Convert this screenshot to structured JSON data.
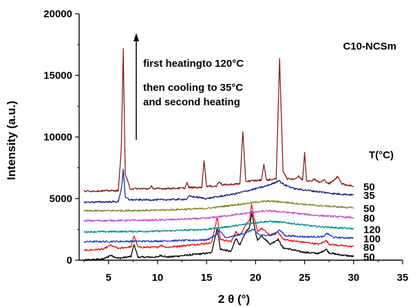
{
  "chart_data": {
    "type": "line",
    "xlabel": "2 θ (°)",
    "ylabel": "Intensity (a.u.)",
    "xlim": [
      2,
      35
    ],
    "ylim": [
      0,
      20000
    ],
    "x_ticks": [
      5,
      10,
      15,
      20,
      25,
      30,
      35
    ],
    "y_ticks": [
      0,
      5000,
      10000,
      15000,
      20000
    ],
    "grid": false,
    "sample_label": "C10-NCSm",
    "annotations": [
      "first heatingto 120°C",
      "then cooling to 35°C",
      "and second heating"
    ],
    "temperature_header": "T(°C)",
    "series": [
      {
        "label": "50",
        "color": "#000000",
        "baseline": 0,
        "x": [
          2.5,
          4.5,
          5.2,
          6,
          7.3,
          7.6,
          8,
          10,
          10.3,
          11,
          15.5,
          15.9,
          16.1,
          16.4,
          17.5,
          18,
          18.4,
          19,
          19.4,
          19.6,
          19.8,
          20.2,
          20.6,
          21.5,
          22.3,
          22.8,
          23.5,
          24.5,
          25.5,
          26.5,
          27.2,
          27.5,
          28.5,
          30
        ],
        "y": [
          0,
          100,
          400,
          150,
          300,
          1300,
          250,
          250,
          400,
          250,
          600,
          2000,
          2600,
          900,
          700,
          1800,
          1200,
          2300,
          2700,
          3900,
          3000,
          1600,
          2000,
          1300,
          1700,
          1000,
          900,
          700,
          600,
          550,
          900,
          600,
          450,
          300
        ]
      },
      {
        "label": "80",
        "color": "#e8161e",
        "baseline": 800,
        "x": [
          2.5,
          4.5,
          5.2,
          6,
          7.3,
          7.6,
          8,
          10,
          10.3,
          11,
          15.5,
          15.9,
          16.1,
          16.4,
          17.5,
          18,
          18.4,
          19,
          19.4,
          19.6,
          19.8,
          20.2,
          20.6,
          21.5,
          22.3,
          22.8,
          23.5,
          24.5,
          25.5,
          26.5,
          27.2,
          27.5,
          28.5,
          30
        ],
        "y": [
          800,
          900,
          1200,
          950,
          1100,
          2000,
          1050,
          1050,
          1200,
          1050,
          1400,
          2800,
          3500,
          1700,
          1500,
          2300,
          2000,
          2900,
          3300,
          4600,
          3600,
          2300,
          2600,
          2000,
          2300,
          1700,
          1600,
          1500,
          1400,
          1300,
          1600,
          1300,
          1200,
          1100
        ]
      },
      {
        "label": "100",
        "color": "#2441c2",
        "baseline": 1600,
        "x": [
          2.5,
          10,
          15,
          15.9,
          16.3,
          17,
          19,
          19.7,
          20.5,
          22,
          22.4,
          23,
          25,
          27,
          27.2,
          28,
          30
        ],
        "y": [
          1500,
          1550,
          1650,
          2000,
          2400,
          1800,
          2200,
          2500,
          2000,
          2100,
          2500,
          2000,
          1900,
          1900,
          2200,
          1850,
          1800
        ]
      },
      {
        "label": "120",
        "color": "#00928e",
        "baseline": 2400,
        "x": [
          2.5,
          10,
          15,
          18,
          20.5,
          21.5,
          23,
          26,
          30
        ],
        "y": [
          2300,
          2350,
          2500,
          2800,
          3100,
          3150,
          3050,
          2750,
          2550
        ]
      },
      {
        "label": "80",
        "color": "#c84fc8",
        "baseline": 3200,
        "x": [
          2.5,
          10,
          15,
          18,
          20.5,
          21.5,
          23,
          26,
          30
        ],
        "y": [
          3200,
          3250,
          3400,
          3700,
          3950,
          4000,
          3900,
          3650,
          3450
        ]
      },
      {
        "label": "50",
        "color": "#86862a",
        "baseline": 4000,
        "x": [
          2.5,
          10,
          15,
          18,
          20.5,
          21.5,
          23,
          26,
          30
        ],
        "y": [
          4000,
          4050,
          4200,
          4500,
          4750,
          4800,
          4700,
          4450,
          4250
        ]
      },
      {
        "label": "35",
        "color": "#1a2a8a",
        "baseline": 4800,
        "x": [
          2.5,
          6,
          6.35,
          6.5,
          6.7,
          7.2,
          10,
          13,
          13.2,
          15,
          18,
          19,
          20,
          21,
          22,
          22.4,
          22.6,
          23,
          24,
          26,
          28,
          30
        ],
        "y": [
          4700,
          4750,
          6000,
          7400,
          5100,
          4900,
          4900,
          4950,
          5200,
          5000,
          5400,
          5600,
          5800,
          6000,
          6300,
          6500,
          6300,
          6100,
          5800,
          5600,
          5400,
          5300
        ]
      },
      {
        "label": "50",
        "color": "#8b1a1a",
        "baseline": 5600,
        "x": [
          2.5,
          6,
          6.3,
          6.5,
          6.7,
          7.2,
          9.2,
          9.4,
          9.6,
          12.8,
          13,
          13.2,
          14.5,
          14.75,
          15,
          16,
          16.3,
          16.6,
          18.4,
          18.7,
          19,
          20.6,
          20.85,
          21.1,
          22.1,
          22.45,
          22.8,
          23,
          23.2,
          24,
          24.4,
          24.8,
          25,
          25.2,
          25.6,
          26,
          26.5,
          27,
          27.5,
          28,
          28.4,
          28.8,
          29.4,
          30
        ],
        "y": [
          5600,
          5650,
          9000,
          17100,
          7000,
          5800,
          5800,
          6000,
          5800,
          5850,
          6300,
          5900,
          5900,
          8100,
          6000,
          6000,
          6400,
          6100,
          6200,
          10400,
          6400,
          6500,
          7800,
          6500,
          6600,
          16300,
          7200,
          7000,
          6600,
          6600,
          6800,
          6500,
          8800,
          6500,
          6400,
          6600,
          6300,
          6500,
          6200,
          6500,
          6800,
          6200,
          6100,
          6000
        ]
      }
    ]
  }
}
